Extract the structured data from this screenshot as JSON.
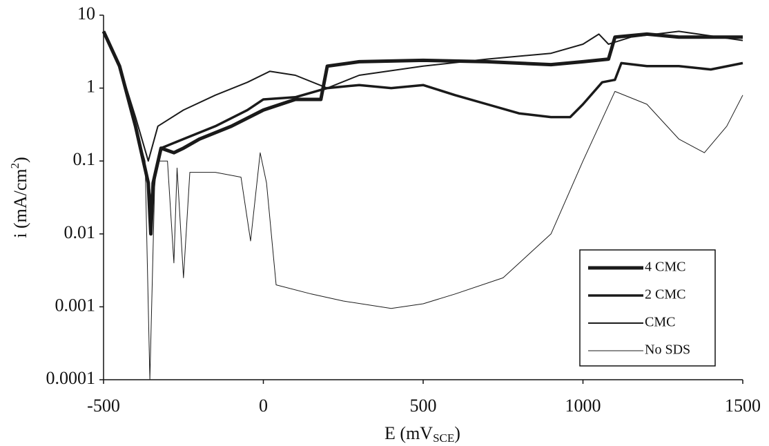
{
  "chart_data": {
    "type": "line",
    "log_y": true,
    "x_label": {
      "text": "E (mV",
      "sub": "SCE",
      "tail": ")"
    },
    "y_label": {
      "text": "i (mA/cm",
      "sup": "2",
      "tail": ")"
    },
    "xlim": [
      -500,
      1500
    ],
    "xticks": [
      -500,
      0,
      500,
      1000,
      1500
    ],
    "ylim": [
      0.0001,
      10
    ],
    "yticks": [
      0.0001,
      0.001,
      0.01,
      0.1,
      1,
      10
    ],
    "legend": "bottom-right",
    "series": [
      {
        "name": "4 CMC",
        "color": "#1a1a1a",
        "width": 5,
        "x": [
          -500,
          -450,
          -400,
          -360,
          -352,
          -345,
          -320,
          -280,
          -250,
          -200,
          -100,
          0,
          100,
          180,
          200,
          300,
          500,
          700,
          900,
          1000,
          1080,
          1100,
          1200,
          1300,
          1500
        ],
        "values": [
          6,
          2,
          0.3,
          0.05,
          0.01,
          0.05,
          0.15,
          0.13,
          0.15,
          0.2,
          0.3,
          0.5,
          0.7,
          0.7,
          2,
          2.3,
          2.4,
          2.3,
          2.1,
          2.3,
          2.5,
          5,
          5.5,
          5,
          5
        ]
      },
      {
        "name": "2 CMC",
        "color": "#1a1a1a",
        "width": 3.5,
        "x": [
          -500,
          -450,
          -400,
          -360,
          -350,
          -340,
          -320,
          -250,
          -150,
          -50,
          0,
          100,
          200,
          300,
          400,
          500,
          600,
          700,
          800,
          900,
          960,
          1000,
          1060,
          1100,
          1120,
          1200,
          1300,
          1400,
          1500
        ],
        "values": [
          6,
          2,
          0.3,
          0.05,
          0.02,
          0.06,
          0.15,
          0.2,
          0.3,
          0.5,
          0.7,
          0.75,
          1,
          1.1,
          1,
          1.1,
          0.8,
          0.6,
          0.45,
          0.4,
          0.4,
          0.6,
          1.2,
          1.3,
          2.2,
          2,
          2,
          1.8,
          2.2
        ]
      },
      {
        "name": "CMC",
        "color": "#1a1a1a",
        "width": 2,
        "x": [
          -500,
          -450,
          -400,
          -360,
          -330,
          -250,
          -150,
          -50,
          20,
          100,
          200,
          300,
          500,
          700,
          900,
          1000,
          1050,
          1080,
          1150,
          1300,
          1500
        ],
        "values": [
          6,
          2,
          0.4,
          0.1,
          0.3,
          0.5,
          0.8,
          1.2,
          1.7,
          1.5,
          1,
          1.5,
          2,
          2.5,
          3,
          4,
          5.5,
          4,
          5,
          6,
          4.5
        ]
      },
      {
        "name": "No SDS",
        "color": "#1a1a1a",
        "width": 1,
        "x": [
          -500,
          -450,
          -400,
          -370,
          -355,
          -340,
          -330,
          -300,
          -280,
          -270,
          -250,
          -230,
          -150,
          -70,
          -40,
          -10,
          10,
          40,
          150,
          250,
          400,
          500,
          600,
          750,
          900,
          1000,
          1100,
          1200,
          1300,
          1380,
          1450,
          1500
        ],
        "values": [
          6,
          2,
          0.3,
          0.1,
          0.0001,
          0.05,
          0.1,
          0.1,
          0.004,
          0.08,
          0.0025,
          0.07,
          0.07,
          0.06,
          0.008,
          0.13,
          0.05,
          0.002,
          0.0015,
          0.0012,
          0.00095,
          0.0011,
          0.0015,
          0.0025,
          0.01,
          0.1,
          0.9,
          0.6,
          0.2,
          0.13,
          0.3,
          0.8
        ]
      }
    ]
  }
}
